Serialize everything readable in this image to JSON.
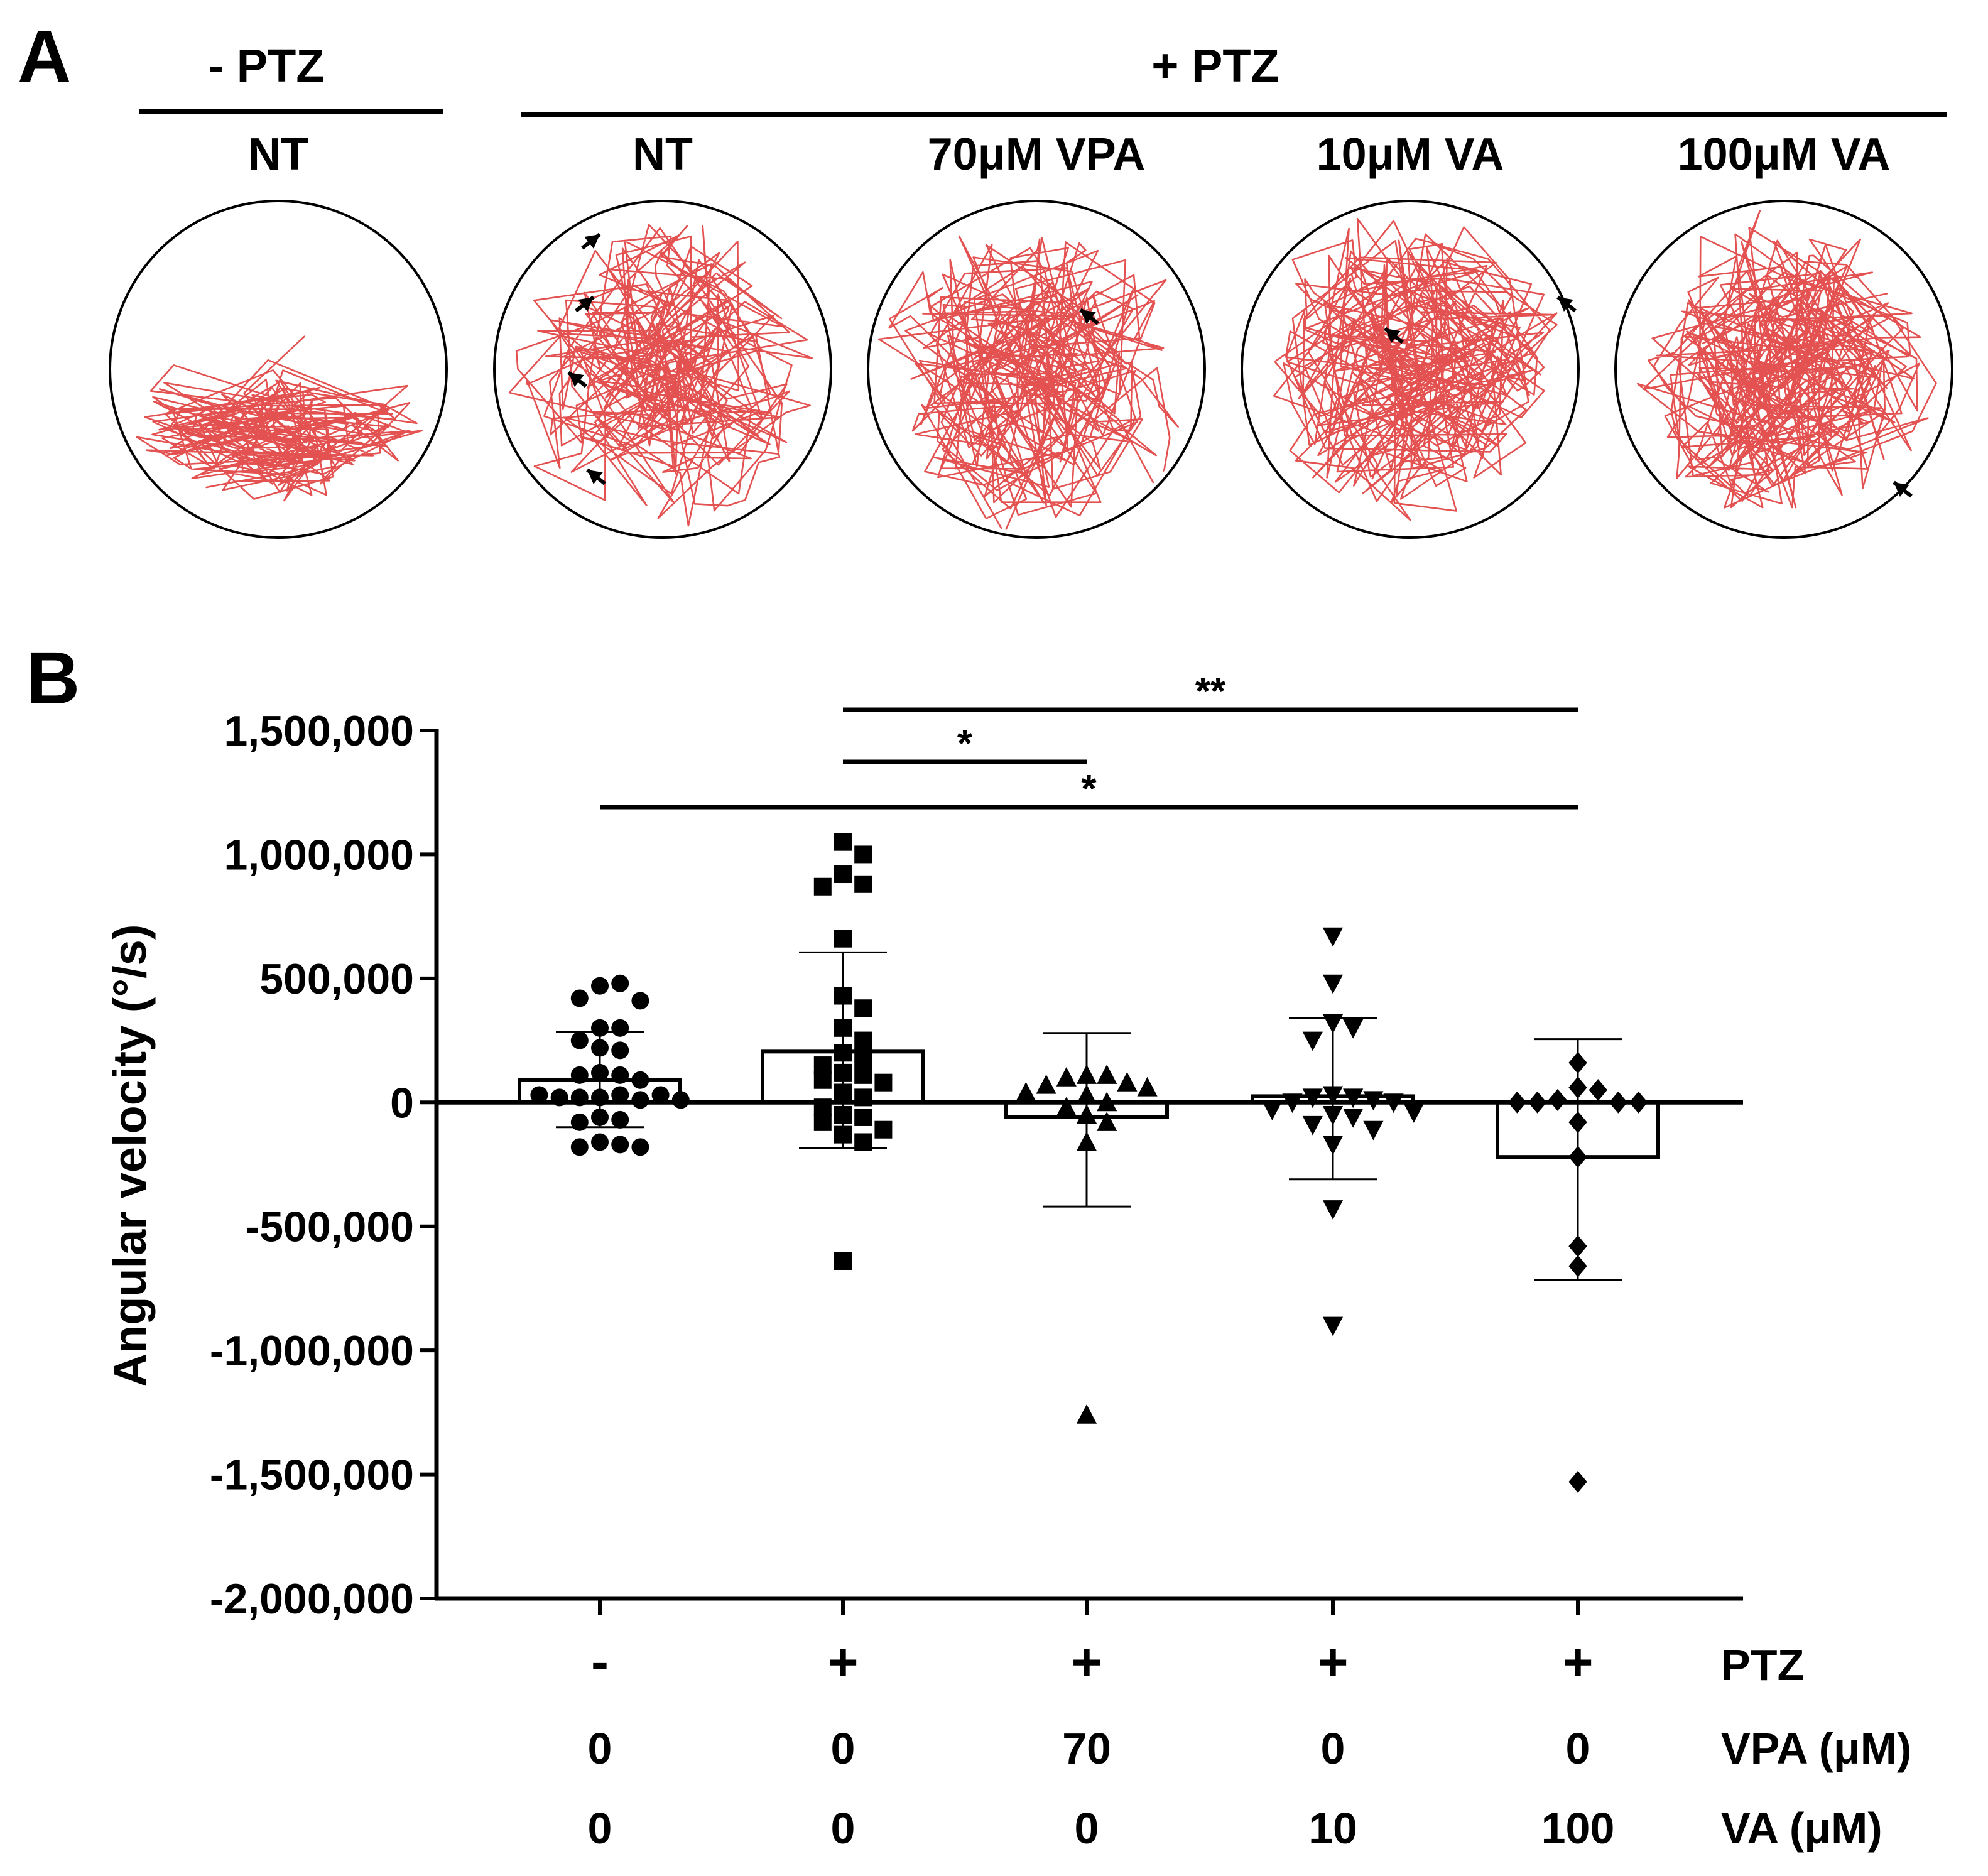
{
  "panel_a": {
    "letter": "A",
    "group_minus": "- PTZ",
    "group_plus": "+ PTZ",
    "wells": [
      {
        "label": "NT",
        "arrows": 0
      },
      {
        "label": "NT",
        "arrows": 4
      },
      {
        "label": "70μM VPA",
        "arrows": 1
      },
      {
        "label": "10μM VA",
        "arrows": 2
      },
      {
        "label": "100μM VA",
        "arrows": 1
      }
    ],
    "colors": {
      "track": "#e14848",
      "well": "#000000"
    }
  },
  "panel_b": {
    "letter": "B"
  },
  "chart_data": {
    "type": "scatter",
    "title": "",
    "ylabel": "Angular velocity (°/s)",
    "ylim": [
      -2000000,
      1500000
    ],
    "yticks": [
      1500000,
      1000000,
      500000,
      0,
      -500000,
      -1000000,
      -1500000,
      -2000000
    ],
    "ytick_labels": [
      "1,500,000",
      "1,000,000",
      "500,000",
      "0",
      "-500,000",
      "-1,000,000",
      "-1,500,000",
      "-2,000,000"
    ],
    "condition_rows": [
      {
        "name": "PTZ",
        "values": [
          "-",
          "+",
          "+",
          "+",
          "+"
        ]
      },
      {
        "name": "VPA (μM)",
        "values": [
          "0",
          "0",
          "70",
          "0",
          "0"
        ]
      },
      {
        "name": "VA (μM)",
        "values": [
          "0",
          "0",
          "0",
          "10",
          "100"
        ]
      }
    ],
    "series": [
      {
        "name": "-PTZ NT",
        "marker": "circle",
        "mean": 90000,
        "sd_upper": 285000,
        "sd_lower": -100000,
        "points": [
          470000,
          480000,
          420000,
          410000,
          300000,
          300000,
          250000,
          220000,
          210000,
          120000,
          110000,
          110000,
          90000,
          20000,
          30000,
          20000,
          10000,
          20000,
          30000,
          30000,
          10000,
          -60000,
          -70000,
          -80000,
          -160000,
          -170000,
          -180000,
          -180000
        ]
      },
      {
        "name": "+PTZ NT",
        "marker": "square",
        "mean": 205000,
        "sd_upper": 605000,
        "sd_lower": -185000,
        "points": [
          1050000,
          1000000,
          920000,
          880000,
          870000,
          660000,
          430000,
          380000,
          300000,
          250000,
          200000,
          180000,
          150000,
          120000,
          110000,
          90000,
          80000,
          40000,
          20000,
          -20000,
          -50000,
          -60000,
          -80000,
          -110000,
          -130000,
          -160000,
          -640000
        ]
      },
      {
        "name": "+PTZ 70μM VPA",
        "marker": "triangle-up",
        "mean": -60000,
        "sd_upper": 280000,
        "sd_lower": -420000,
        "points": [
          110000,
          110000,
          100000,
          80000,
          70000,
          60000,
          40000,
          30000,
          0,
          -20000,
          -50000,
          -80000,
          -160000,
          -1260000
        ]
      },
      {
        "name": "+PTZ 10μM VA",
        "marker": "triangle-down",
        "mean": 25000,
        "sd_upper": 340000,
        "sd_lower": -310000,
        "points": [
          670000,
          480000,
          320000,
          300000,
          250000,
          30000,
          20000,
          20000,
          10000,
          0,
          0,
          -30000,
          -40000,
          -50000,
          -60000,
          -90000,
          -110000,
          -170000,
          -430000,
          -900000
        ]
      },
      {
        "name": "+PTZ 100μM VA",
        "marker": "diamond",
        "mean": -220000,
        "sd_upper": 255000,
        "sd_lower": -715000,
        "points": [
          160000,
          60000,
          50000,
          10000,
          0,
          0,
          0,
          0,
          -80000,
          -220000,
          -580000,
          -660000,
          -1530000
        ]
      }
    ],
    "significance": [
      {
        "from": 1,
        "to": 4,
        "label": "**"
      },
      {
        "from": 1,
        "to": 2,
        "label": "*"
      },
      {
        "from": 0,
        "to": 4,
        "label": "*"
      }
    ]
  }
}
